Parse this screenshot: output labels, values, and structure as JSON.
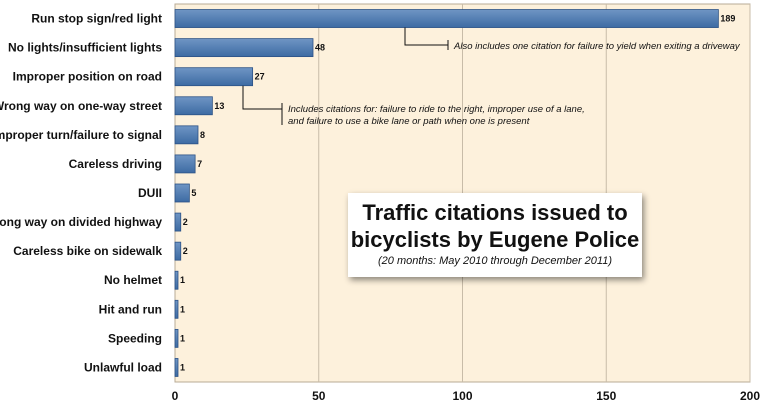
{
  "chart_data": {
    "type": "bar",
    "orientation": "horizontal",
    "title": "Traffic citations issued to bicyclists by Eugene Police",
    "title_lines": [
      "Traffic citations issued to",
      "bicyclists by Eugene Police"
    ],
    "subtitle": "(20 months: May 2010 through December 2011)",
    "categories": [
      "Run stop sign/red light",
      "No lights/insufficient lights",
      "Improper position on road",
      "Wrong way on one-way street",
      "Improper turn/failure to signal",
      "Careless driving",
      "DUII",
      "Wrong way on divided highway",
      "Careless bike on sidewalk",
      "No helmet",
      "Hit and run",
      "Speeding",
      "Unlawful load"
    ],
    "values": [
      189,
      48,
      27,
      13,
      8,
      7,
      5,
      2,
      2,
      1,
      1,
      1,
      1
    ],
    "value_labels": [
      "189",
      "48",
      "27",
      "13",
      "8",
      "7",
      "5",
      "2",
      "2",
      "1",
      "1",
      "1",
      "1"
    ],
    "xlim": [
      0,
      200
    ],
    "xticks": [
      "0",
      "50",
      "100",
      "150",
      "200"
    ],
    "xtick_values": [
      0,
      50,
      100,
      150,
      200
    ],
    "grid": true,
    "legend": "none",
    "annotations": [
      {
        "category_index": 0,
        "text_lines": [
          "Also includes one citation for failure to yield when exiting a driveway"
        ]
      },
      {
        "category_index": 2,
        "text_lines": [
          "Includes citations for: failure to ride to the right, improper use of a lane,",
          "and failure to use a bike lane or path when one is present"
        ]
      }
    ],
    "colors": {
      "bar": "#3d6ba3",
      "bar_highlight": "#6f95c4",
      "plot_background": "#fdf1dc",
      "grid": "#c8bca8"
    }
  }
}
